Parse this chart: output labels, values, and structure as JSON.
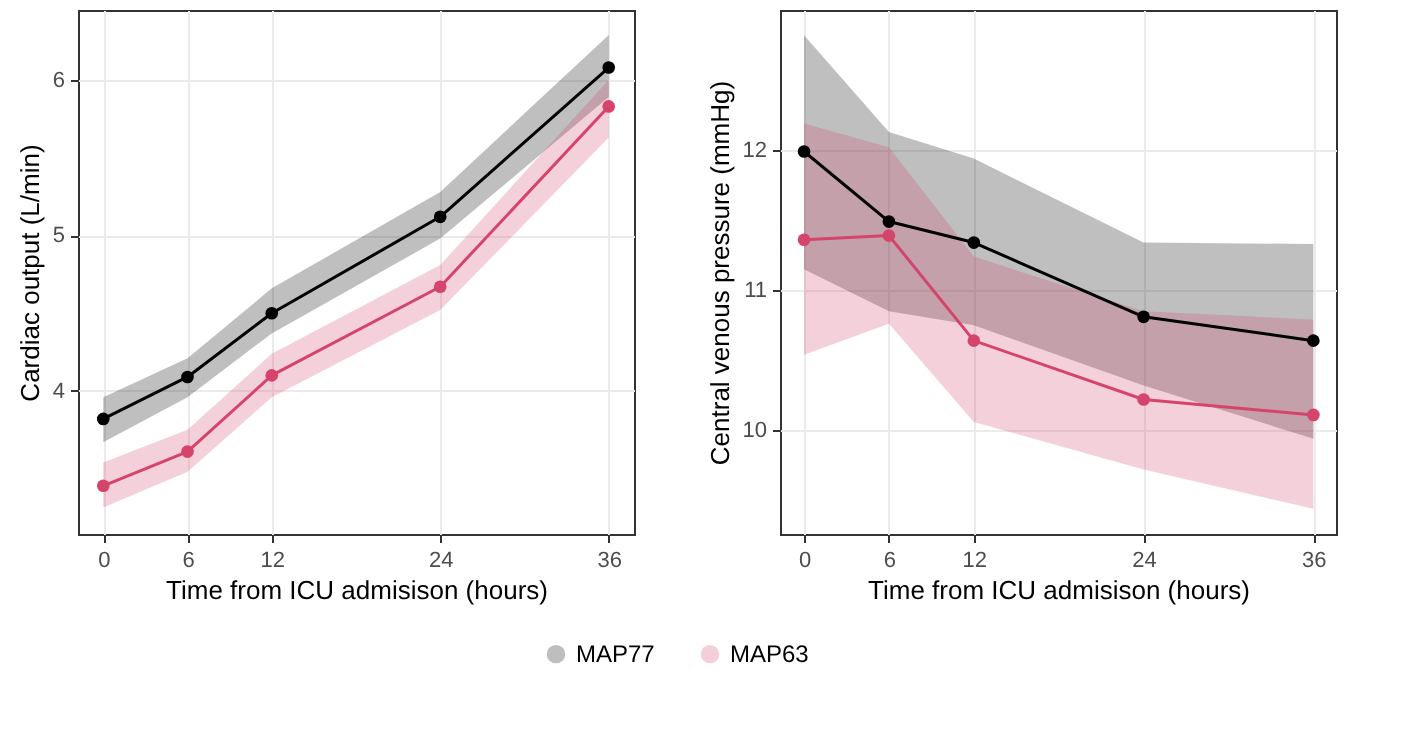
{
  "chart_data": [
    {
      "type": "line",
      "xlabel": "Time from ICU admisison (hours)",
      "ylabel": "Cardiac output (L/min)",
      "x": [
        0,
        6,
        12,
        24,
        36
      ],
      "xlim": [
        -1.8,
        37.8
      ],
      "xticks": [
        0,
        6,
        12,
        24,
        36
      ],
      "ylim": [
        3.08,
        6.45
      ],
      "yticks": [
        4,
        5,
        6
      ],
      "grid": true,
      "legend": "bottom",
      "marker": "circle",
      "series": [
        {
          "name": "MAP77",
          "color": "#000000",
          "values": [
            3.82,
            4.09,
            4.5,
            5.12,
            6.08
          ],
          "lower": [
            3.67,
            3.96,
            4.37,
            4.98,
            5.89
          ],
          "upper": [
            3.96,
            4.21,
            4.66,
            5.28,
            6.29
          ]
        },
        {
          "name": "MAP63",
          "color": "#d5446b",
          "values": [
            3.39,
            3.61,
            4.1,
            4.67,
            5.83
          ],
          "lower": [
            3.25,
            3.48,
            3.96,
            4.52,
            5.63
          ],
          "upper": [
            3.54,
            3.75,
            4.24,
            4.81,
            6.0
          ]
        }
      ]
    },
    {
      "type": "line",
      "xlabel": "Time from ICU admisison (hours)",
      "ylabel": "Central venous pressure (mmHg)",
      "x": [
        0,
        6,
        12,
        24,
        36
      ],
      "xlim": [
        -1.7,
        37.6
      ],
      "xticks": [
        0,
        6,
        12,
        24,
        36
      ],
      "ylim": [
        9.26,
        13.0
      ],
      "yticks": [
        10,
        11,
        12
      ],
      "grid": true,
      "legend": "bottom",
      "marker": "circle",
      "series": [
        {
          "name": "MAP77",
          "color": "#000000",
          "values": [
            11.99,
            11.49,
            11.34,
            10.81,
            10.64
          ],
          "lower": [
            11.15,
            10.85,
            10.75,
            10.32,
            9.94
          ],
          "upper": [
            12.82,
            12.13,
            11.94,
            11.34,
            11.33
          ]
        },
        {
          "name": "MAP63",
          "color": "#d5446b",
          "values": [
            11.36,
            11.39,
            10.64,
            10.22,
            10.11
          ],
          "lower": [
            10.54,
            10.76,
            10.06,
            9.72,
            9.44
          ],
          "upper": [
            12.19,
            12.02,
            11.24,
            10.85,
            10.79
          ]
        }
      ]
    }
  ]
}
